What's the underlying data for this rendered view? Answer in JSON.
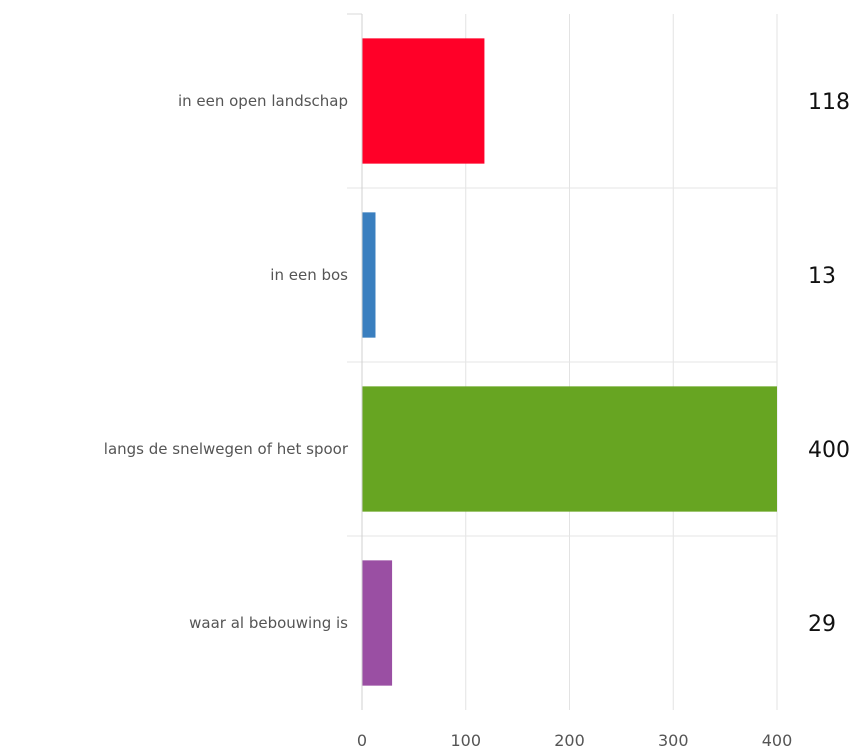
{
  "chart_data": {
    "type": "bar",
    "orientation": "horizontal",
    "categories": [
      "in een open landschap",
      "in een bos",
      "langs de snelwegen of het spoor",
      "waar al bebouwing is"
    ],
    "values": [
      118,
      13,
      400,
      29
    ],
    "value_labels": [
      "118",
      "13",
      "400",
      "29"
    ],
    "colors": [
      "#ff0028",
      "#3a7fbf",
      "#67a522",
      "#9a4fa3"
    ],
    "xlim": [
      0,
      400
    ],
    "xticks": [
      0,
      100,
      200,
      300,
      400
    ],
    "xtick_labels": [
      "0",
      "100",
      "200",
      "300",
      "400"
    ],
    "grid": true,
    "legend": "none"
  }
}
